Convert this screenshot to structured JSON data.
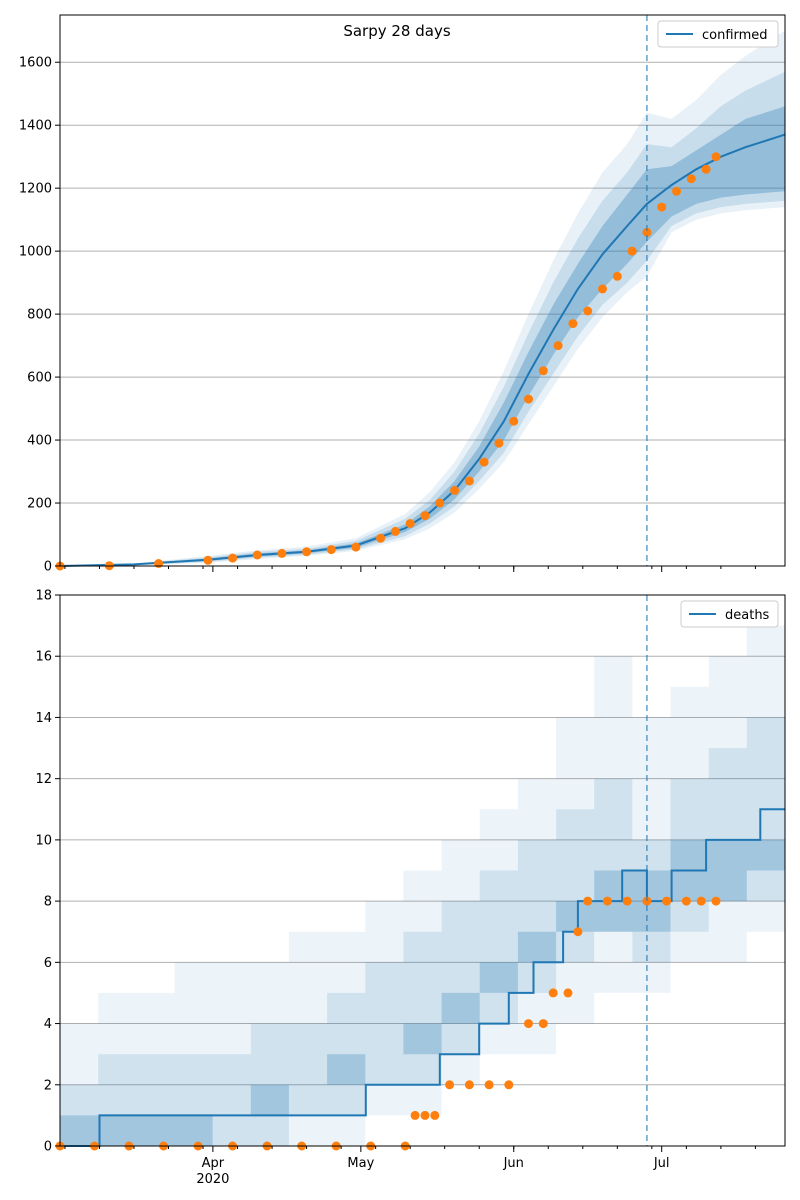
{
  "chart_data": [
    {
      "type": "line",
      "title": "Sarpy 28 days",
      "x_axis": {
        "type": "date",
        "range": [
          "2020-03-01",
          "2020-07-26"
        ],
        "major_ticks": []
      },
      "y_axis": {
        "range": [
          0,
          1750
        ],
        "ticks": [
          0,
          200,
          400,
          600,
          800,
          1000,
          1200,
          1400,
          1600
        ]
      },
      "grid": "horizontal",
      "legend": {
        "position": "top-right",
        "entries": [
          "confirmed"
        ]
      },
      "forecast_start": "2020-06-28",
      "series": [
        {
          "name": "confirmed",
          "style": "line",
          "color": "#1f77b4",
          "points": [
            [
              "2020-03-01",
              0
            ],
            [
              "2020-03-16",
              5
            ],
            [
              "2020-03-31",
              20
            ],
            [
              "2020-04-10",
              35
            ],
            [
              "2020-04-20",
              45
            ],
            [
              "2020-04-30",
              65
            ],
            [
              "2020-05-10",
              120
            ],
            [
              "2020-05-15",
              170
            ],
            [
              "2020-05-20",
              240
            ],
            [
              "2020-05-25",
              340
            ],
            [
              "2020-05-30",
              460
            ],
            [
              "2020-06-04",
              610
            ],
            [
              "2020-06-09",
              750
            ],
            [
              "2020-06-14",
              880
            ],
            [
              "2020-06-19",
              990
            ],
            [
              "2020-06-24",
              1080
            ],
            [
              "2020-06-28",
              1150
            ],
            [
              "2020-07-03",
              1210
            ],
            [
              "2020-07-08",
              1260
            ],
            [
              "2020-07-13",
              1300
            ],
            [
              "2020-07-18",
              1330
            ],
            [
              "2020-07-26",
              1370
            ]
          ],
          "bands": [
            {
              "opacity": 0.3,
              "lower": [
                0,
                4,
                16,
                30,
                40,
                58,
                108,
                150,
                212,
                300,
                400,
                540,
                670,
                790,
                880,
                960,
                1030,
                1110,
                1150,
                1170,
                1180,
                1190
              ],
              "upper": [
                0,
                6,
                24,
                40,
                50,
                72,
                132,
                190,
                270,
                380,
                520,
                680,
                830,
                960,
                1080,
                1180,
                1260,
                1270,
                1320,
                1370,
                1420,
                1460
              ]
            },
            {
              "opacity": 0.16,
              "lower": [
                0,
                3,
                13,
                26,
                36,
                53,
                95,
                135,
                190,
                270,
                360,
                490,
                610,
                730,
                830,
                900,
                970,
                1080,
                1120,
                1140,
                1150,
                1160
              ],
              "upper": [
                0,
                7,
                28,
                45,
                55,
                80,
                150,
                210,
                300,
                420,
                570,
                740,
                900,
                1040,
                1160,
                1250,
                1340,
                1330,
                1390,
                1460,
                1510,
                1570
              ]
            },
            {
              "opacity": 0.1,
              "lower": [
                0,
                2,
                10,
                22,
                32,
                48,
                85,
                120,
                170,
                245,
                330,
                450,
                570,
                690,
                790,
                870,
                920,
                1060,
                1100,
                1120,
                1130,
                1140
              ],
              "upper": [
                0,
                8,
                32,
                50,
                62,
                88,
                165,
                235,
                330,
                460,
                620,
                800,
                970,
                1120,
                1250,
                1340,
                1440,
                1420,
                1480,
                1560,
                1620,
                1700
              ]
            }
          ]
        },
        {
          "name": "",
          "style": "markers",
          "color": "#ff7f0e",
          "points": [
            [
              "2020-03-01",
              0
            ],
            [
              "2020-03-11",
              1
            ],
            [
              "2020-03-21",
              8
            ],
            [
              "2020-03-31",
              18
            ],
            [
              "2020-04-05",
              25
            ],
            [
              "2020-04-10",
              35
            ],
            [
              "2020-04-15",
              40
            ],
            [
              "2020-04-20",
              45
            ],
            [
              "2020-04-25",
              52
            ],
            [
              "2020-04-30",
              60
            ],
            [
              "2020-05-05",
              88
            ],
            [
              "2020-05-08",
              110
            ],
            [
              "2020-05-11",
              135
            ],
            [
              "2020-05-14",
              160
            ],
            [
              "2020-05-17",
              200
            ],
            [
              "2020-05-20",
              240
            ],
            [
              "2020-05-23",
              270
            ],
            [
              "2020-05-26",
              330
            ],
            [
              "2020-05-29",
              390
            ],
            [
              "2020-06-01",
              460
            ],
            [
              "2020-06-04",
              530
            ],
            [
              "2020-06-07",
              620
            ],
            [
              "2020-06-10",
              700
            ],
            [
              "2020-06-13",
              770
            ],
            [
              "2020-06-16",
              810
            ],
            [
              "2020-06-19",
              880
            ],
            [
              "2020-06-22",
              920
            ],
            [
              "2020-06-25",
              1000
            ],
            [
              "2020-06-28",
              1060
            ],
            [
              "2020-07-01",
              1140
            ],
            [
              "2020-07-04",
              1190
            ],
            [
              "2020-07-07",
              1230
            ],
            [
              "2020-07-10",
              1260
            ],
            [
              "2020-07-12",
              1300
            ]
          ]
        }
      ]
    },
    {
      "type": "line",
      "title": "",
      "x_axis": {
        "type": "date",
        "range": [
          "2020-03-01",
          "2020-07-26"
        ],
        "major_ticks": [
          "Apr\n2020",
          "May",
          "Jun",
          "Jul"
        ]
      },
      "y_axis": {
        "range": [
          0,
          18
        ],
        "ticks": [
          0,
          2,
          4,
          6,
          8,
          10,
          12,
          14,
          16,
          18
        ]
      },
      "grid": "horizontal",
      "legend": {
        "position": "top-right",
        "entries": [
          "deaths"
        ]
      },
      "forecast_start": "2020-06-28",
      "series": [
        {
          "name": "deaths",
          "style": "step",
          "color": "#1f77b4",
          "points": [
            [
              "2020-03-01",
              0
            ],
            [
              "2020-03-09",
              0
            ],
            [
              "2020-03-09",
              1
            ],
            [
              "2020-05-02",
              1
            ],
            [
              "2020-05-02",
              2
            ],
            [
              "2020-05-17",
              2
            ],
            [
              "2020-05-17",
              3
            ],
            [
              "2020-05-25",
              3
            ],
            [
              "2020-05-25",
              4
            ],
            [
              "2020-05-31",
              4
            ],
            [
              "2020-05-31",
              5
            ],
            [
              "2020-06-05",
              5
            ],
            [
              "2020-06-05",
              6
            ],
            [
              "2020-06-11",
              6
            ],
            [
              "2020-06-11",
              7
            ],
            [
              "2020-06-14",
              7
            ],
            [
              "2020-06-14",
              8
            ],
            [
              "2020-06-23",
              8
            ],
            [
              "2020-06-23",
              9
            ],
            [
              "2020-06-28",
              9
            ],
            [
              "2020-06-28",
              8
            ],
            [
              "2020-07-03",
              8
            ],
            [
              "2020-07-03",
              9
            ],
            [
              "2020-07-10",
              9
            ],
            [
              "2020-07-10",
              10
            ],
            [
              "2020-07-21",
              10
            ],
            [
              "2020-07-21",
              11
            ],
            [
              "2020-07-26",
              11
            ]
          ],
          "bands": [
            {
              "opacity": 0.25,
              "lower": [
                0,
                0,
                0,
                0,
                1,
                1,
                2,
                2,
                3,
                3,
                4,
                5,
                6,
                7,
                7,
                7,
                8,
                8,
                9,
                9
              ],
              "upper": [
                1,
                1,
                1,
                1,
                1,
                2,
                2,
                3,
                3,
                4,
                5,
                6,
                7,
                8,
                9,
                9,
                10,
                10,
                10,
                12
              ]
            },
            {
              "opacity": 0.14,
              "lower": [
                0,
                0,
                0,
                0,
                0,
                0,
                1,
                1,
                2,
                2,
                3,
                4,
                5,
                6,
                7,
                6,
                7,
                8,
                8,
                8
              ],
              "upper": [
                2,
                3,
                3,
                3,
                3,
                4,
                4,
                5,
                6,
                7,
                8,
                9,
                10,
                11,
                12,
                10,
                12,
                13,
                14,
                14
              ]
            },
            {
              "opacity": 0.08,
              "lower": [
                0,
                0,
                0,
                0,
                0,
                0,
                0,
                0,
                1,
                1,
                2,
                3,
                3,
                4,
                5,
                5,
                6,
                6,
                7,
                8
              ],
              "upper": [
                4,
                5,
                5,
                6,
                6,
                6,
                7,
                7,
                8,
                9,
                10,
                11,
                12,
                14,
                16,
                14,
                15,
                16,
                17,
                17
              ]
            }
          ]
        },
        {
          "name": "",
          "style": "markers",
          "color": "#ff7f0e",
          "points": [
            [
              "2020-03-01",
              0
            ],
            [
              "2020-03-08",
              0
            ],
            [
              "2020-03-15",
              0
            ],
            [
              "2020-03-22",
              0
            ],
            [
              "2020-03-29",
              0
            ],
            [
              "2020-04-05",
              0
            ],
            [
              "2020-04-12",
              0
            ],
            [
              "2020-04-19",
              0
            ],
            [
              "2020-04-26",
              0
            ],
            [
              "2020-05-03",
              0
            ],
            [
              "2020-05-10",
              0
            ],
            [
              "2020-05-12",
              1
            ],
            [
              "2020-05-14",
              1
            ],
            [
              "2020-05-16",
              1
            ],
            [
              "2020-05-19",
              2
            ],
            [
              "2020-05-23",
              2
            ],
            [
              "2020-05-27",
              2
            ],
            [
              "2020-05-31",
              2
            ],
            [
              "2020-06-04",
              4
            ],
            [
              "2020-06-07",
              4
            ],
            [
              "2020-06-09",
              5
            ],
            [
              "2020-06-12",
              5
            ],
            [
              "2020-06-14",
              7
            ],
            [
              "2020-06-16",
              8
            ],
            [
              "2020-06-20",
              8
            ],
            [
              "2020-06-24",
              8
            ],
            [
              "2020-06-28",
              8
            ],
            [
              "2020-07-02",
              8
            ],
            [
              "2020-07-06",
              8
            ],
            [
              "2020-07-09",
              8
            ],
            [
              "2020-07-12",
              8
            ]
          ]
        }
      ]
    }
  ]
}
